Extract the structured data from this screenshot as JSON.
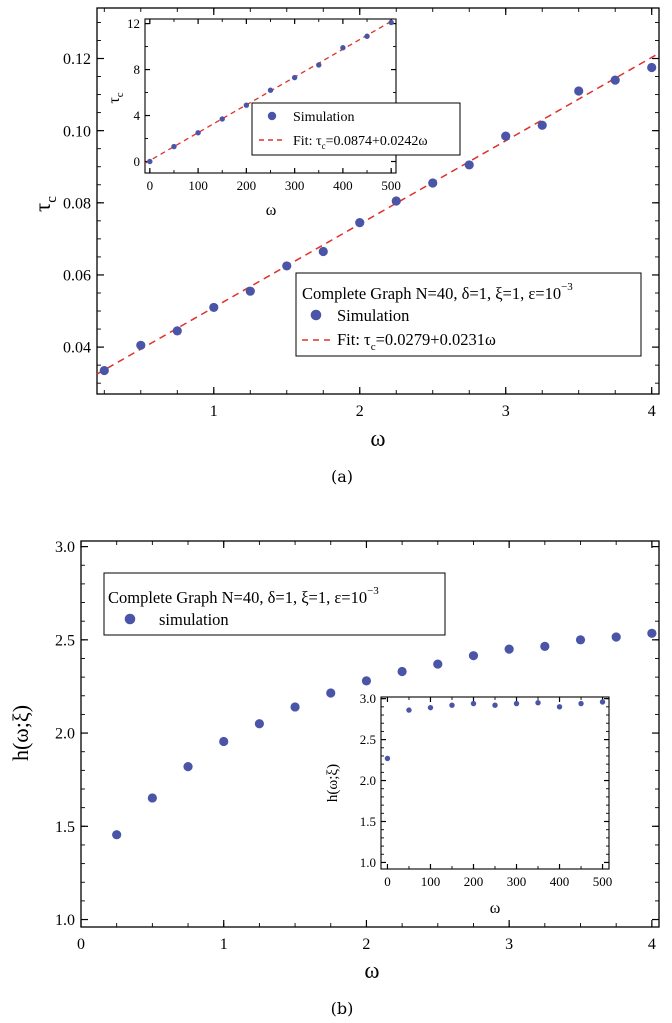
{
  "chart_data": [
    {
      "id": "a_main",
      "panel_caption": "(a)",
      "type": "scatter",
      "xlabel": "ω",
      "ylabel": "τ",
      "ylabel_sub": "c",
      "xlim": [
        0.2,
        4.05
      ],
      "ylim": [
        0.027,
        0.134
      ],
      "xticks": [
        1,
        2,
        3,
        4
      ],
      "yticks": [
        0.04,
        0.06,
        0.08,
        0.1,
        0.12
      ],
      "ytick_labels": [
        "0.04",
        "0.06",
        "0.08",
        "0.10",
        "0.12"
      ],
      "series": [
        {
          "name": "Simulation",
          "kind": "points",
          "color": "#4a55a8",
          "x": [
            0.25,
            0.5,
            0.75,
            1.0,
            1.25,
            1.5,
            1.75,
            2.0,
            2.25,
            2.5,
            2.75,
            3.0,
            3.25,
            3.5,
            3.75,
            4.0
          ],
          "y": [
            0.0335,
            0.0405,
            0.0445,
            0.051,
            0.0555,
            0.0625,
            0.0665,
            0.0745,
            0.0805,
            0.0855,
            0.0905,
            0.0985,
            0.1015,
            0.111,
            0.114,
            0.1175
          ]
        },
        {
          "name": "Fit: τ=0.0279+0.0231ω",
          "kind": "dashed-line",
          "color": "#e0302a",
          "intercept": 0.0279,
          "slope": 0.0231
        }
      ],
      "legend": {
        "title_parts": [
          "Complete Graph N=40, δ=1, ξ=1, ε=10",
          "−3"
        ],
        "entries": [
          "Simulation",
          "Fit: τ",
          "c",
          "=0.0279+0.0231ω"
        ]
      }
    },
    {
      "id": "a_inset",
      "type": "scatter",
      "xlabel": "ω",
      "ylabel": "τ",
      "ylabel_sub": "c",
      "xlim": [
        -10,
        510
      ],
      "ylim": [
        -1,
        12.4
      ],
      "xticks": [
        0,
        100,
        200,
        300,
        400,
        500
      ],
      "yticks": [
        0,
        4,
        8,
        12
      ],
      "series": [
        {
          "name": "Simulation",
          "kind": "points",
          "color": "#4a55a8",
          "x": [
            0,
            50,
            100,
            150,
            200,
            250,
            300,
            350,
            400,
            450,
            500
          ],
          "y": [
            0.0,
            1.3,
            2.5,
            3.7,
            4.9,
            6.2,
            7.3,
            8.4,
            9.9,
            10.9,
            12.1
          ]
        },
        {
          "name": "Fit: τ=0.0874+0.0242ω",
          "kind": "dashed-line",
          "color": "#e0302a",
          "intercept": 0.0874,
          "slope": 0.0242
        }
      ],
      "legend": {
        "entries": [
          "Simulation",
          "Fit: τ",
          "c",
          "=0.0874+0.0242ω"
        ]
      }
    },
    {
      "id": "b_main",
      "panel_caption": "(b)",
      "type": "scatter",
      "xlabel": "ω",
      "ylabel": "h(ω;ξ)",
      "xlim": [
        0,
        4.05
      ],
      "ylim": [
        0.96,
        3.03
      ],
      "xticks": [
        0,
        1,
        2,
        3,
        4
      ],
      "yticks": [
        1.0,
        1.5,
        2.0,
        2.5,
        3.0
      ],
      "ytick_labels": [
        "1.0",
        "1.5",
        "2.0",
        "2.5",
        "3.0"
      ],
      "series": [
        {
          "name": "simulation",
          "kind": "points",
          "color": "#4a55a8",
          "x": [
            0.25,
            0.5,
            0.75,
            1.0,
            1.25,
            1.5,
            1.75,
            2.0,
            2.25,
            2.5,
            2.75,
            3.0,
            3.25,
            3.5,
            3.75,
            4.0
          ],
          "y": [
            1.455,
            1.652,
            1.82,
            1.955,
            2.05,
            2.14,
            2.215,
            2.28,
            2.33,
            2.37,
            2.415,
            2.45,
            2.465,
            2.5,
            2.515,
            2.535
          ]
        }
      ],
      "legend": {
        "title_parts": [
          "Complete Graph N=40, δ=1, ξ=1, ε=10",
          "−3"
        ],
        "entries": [
          "simulation"
        ]
      }
    },
    {
      "id": "b_inset",
      "type": "scatter",
      "xlabel": "ω",
      "ylabel": "h(ω;ξ)",
      "xlim": [
        -15,
        515
      ],
      "ylim": [
        0.92,
        3.02
      ],
      "xticks": [
        0,
        100,
        200,
        300,
        400,
        500
      ],
      "yticks": [
        1.0,
        1.5,
        2.0,
        2.5,
        3.0
      ],
      "ytick_labels": [
        "1.0",
        "1.5",
        "2.0",
        "2.5",
        "3.0"
      ],
      "series": [
        {
          "name": "simulation",
          "kind": "points",
          "color": "#4a55a8",
          "x": [
            0,
            50,
            100,
            150,
            200,
            250,
            300,
            350,
            400,
            450,
            500
          ],
          "y": [
            2.27,
            2.86,
            2.89,
            2.92,
            2.94,
            2.92,
            2.94,
            2.95,
            2.9,
            2.94,
            2.96
          ]
        }
      ]
    }
  ]
}
